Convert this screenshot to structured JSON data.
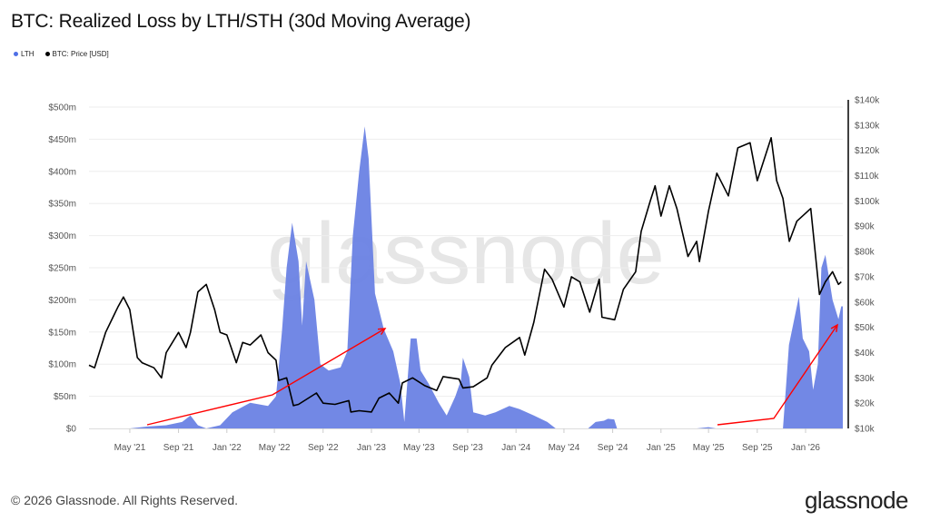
{
  "header": {
    "title": "BTC: Realized Loss by LTH/STH (30d Moving Average)"
  },
  "footer": {
    "copyright": "© 2026 Glassnode. All Rights Reserved.",
    "logo": "glassnode",
    "watermark": "glassnode"
  },
  "chart_data": {
    "type": "area+line",
    "title": "BTC: Realized Loss by LTH/STH (30d Moving Average)",
    "legend_position": "top-left",
    "grid": true,
    "x": {
      "type": "date",
      "range": [
        "2021-01-18",
        "2026-04-05"
      ],
      "tick_labels": [
        "May '21",
        "Sep '21",
        "Jan '22",
        "May '22",
        "Sep '22",
        "Jan '23",
        "May '23",
        "Sep '23",
        "Jan '24",
        "May '24",
        "Sep '24",
        "Jan '25",
        "May '25",
        "Sep '25",
        "Jan '26"
      ],
      "tick_dates": [
        "2021-05-01",
        "2021-09-01",
        "2022-01-01",
        "2022-05-01",
        "2022-09-01",
        "2023-01-01",
        "2023-05-01",
        "2023-09-01",
        "2024-01-01",
        "2024-05-01",
        "2024-09-01",
        "2025-01-01",
        "2025-05-01",
        "2025-09-01",
        "2026-01-01"
      ]
    },
    "y_left": {
      "unit": "USD millions",
      "range": [
        0,
        500
      ],
      "tick_labels": [
        "$0",
        "$50m",
        "$100m",
        "$150m",
        "$200m",
        "$250m",
        "$300m",
        "$350m",
        "$400m",
        "$450m",
        "$500m"
      ]
    },
    "y_right": {
      "unit": "USD thousands",
      "range": [
        10,
        140
      ],
      "tick_labels": [
        "$10k",
        "$20k",
        "$30k",
        "$40k",
        "$50k",
        "$60k",
        "$70k",
        "$80k",
        "$90k",
        "$100k",
        "$110k",
        "$120k",
        "$130k",
        "$140k"
      ]
    },
    "series": [
      {
        "name": "LTH",
        "type": "area",
        "axis": "left",
        "color": "#6a82e4",
        "points": [
          [
            "2021-01-18",
            0
          ],
          [
            "2021-05-01",
            0
          ],
          [
            "2021-06-15",
            3
          ],
          [
            "2021-08-01",
            5
          ],
          [
            "2021-09-10",
            10
          ],
          [
            "2021-10-01",
            20
          ],
          [
            "2021-10-20",
            5
          ],
          [
            "2021-11-10",
            0
          ],
          [
            "2021-12-15",
            5
          ],
          [
            "2022-01-15",
            25
          ],
          [
            "2022-03-01",
            40
          ],
          [
            "2022-04-15",
            35
          ],
          [
            "2022-05-05",
            50
          ],
          [
            "2022-05-20",
            150
          ],
          [
            "2022-06-01",
            250
          ],
          [
            "2022-06-15",
            320
          ],
          [
            "2022-07-01",
            260
          ],
          [
            "2022-07-10",
            160
          ],
          [
            "2022-07-20",
            260
          ],
          [
            "2022-08-10",
            200
          ],
          [
            "2022-08-25",
            100
          ],
          [
            "2022-09-15",
            90
          ],
          [
            "2022-10-15",
            95
          ],
          [
            "2022-11-01",
            120
          ],
          [
            "2022-11-15",
            300
          ],
          [
            "2022-12-01",
            400
          ],
          [
            "2022-12-15",
            470
          ],
          [
            "2022-12-25",
            420
          ],
          [
            "2023-01-10",
            210
          ],
          [
            "2023-02-01",
            155
          ],
          [
            "2023-02-25",
            120
          ],
          [
            "2023-03-15",
            70
          ],
          [
            "2023-03-25",
            10
          ],
          [
            "2023-04-10",
            140
          ],
          [
            "2023-04-25",
            140
          ],
          [
            "2023-05-05",
            90
          ],
          [
            "2023-05-25",
            70
          ],
          [
            "2023-06-20",
            40
          ],
          [
            "2023-07-10",
            20
          ],
          [
            "2023-08-01",
            50
          ],
          [
            "2023-08-15",
            75
          ],
          [
            "2023-08-20",
            110
          ],
          [
            "2023-09-05",
            80
          ],
          [
            "2023-09-15",
            25
          ],
          [
            "2023-10-15",
            20
          ],
          [
            "2023-11-10",
            25
          ],
          [
            "2023-12-15",
            35
          ],
          [
            "2024-01-10",
            30
          ],
          [
            "2024-02-15",
            20
          ],
          [
            "2024-03-20",
            10
          ],
          [
            "2024-04-10",
            0
          ],
          [
            "2024-07-01",
            0
          ],
          [
            "2024-07-20",
            10
          ],
          [
            "2024-08-10",
            12
          ],
          [
            "2024-08-20",
            15
          ],
          [
            "2024-09-05",
            14
          ],
          [
            "2024-09-12",
            0
          ],
          [
            "2025-04-01",
            0
          ],
          [
            "2025-05-01",
            2
          ],
          [
            "2025-05-20",
            0
          ],
          [
            "2025-11-05",
            0
          ],
          [
            "2025-11-12",
            60
          ],
          [
            "2025-11-20",
            130
          ],
          [
            "2025-12-15",
            205
          ],
          [
            "2025-12-25",
            140
          ],
          [
            "2026-01-10",
            120
          ],
          [
            "2026-01-20",
            60
          ],
          [
            "2026-02-01",
            100
          ],
          [
            "2026-02-10",
            250
          ],
          [
            "2026-02-20",
            270
          ],
          [
            "2026-03-10",
            200
          ],
          [
            "2026-03-25",
            170
          ],
          [
            "2026-04-01",
            190
          ],
          [
            "2026-04-05",
            190
          ]
        ]
      },
      {
        "name": "BTC: Price [USD]",
        "type": "line",
        "axis": "right",
        "color": "#000000",
        "points": [
          [
            "2021-01-18",
            35
          ],
          [
            "2021-02-01",
            34
          ],
          [
            "2021-03-01",
            48
          ],
          [
            "2021-04-01",
            58
          ],
          [
            "2021-04-15",
            62
          ],
          [
            "2021-05-01",
            57
          ],
          [
            "2021-05-20",
            38
          ],
          [
            "2021-06-01",
            36
          ],
          [
            "2021-07-01",
            34
          ],
          [
            "2021-07-20",
            30
          ],
          [
            "2021-08-01",
            40
          ],
          [
            "2021-09-01",
            48
          ],
          [
            "2021-09-20",
            42
          ],
          [
            "2021-10-01",
            48
          ],
          [
            "2021-10-20",
            64
          ],
          [
            "2021-11-10",
            67
          ],
          [
            "2021-12-01",
            57
          ],
          [
            "2021-12-15",
            48
          ],
          [
            "2022-01-01",
            47
          ],
          [
            "2022-01-25",
            36
          ],
          [
            "2022-02-10",
            44
          ],
          [
            "2022-03-01",
            43
          ],
          [
            "2022-03-28",
            47
          ],
          [
            "2022-04-15",
            40
          ],
          [
            "2022-05-05",
            37
          ],
          [
            "2022-05-12",
            29
          ],
          [
            "2022-06-01",
            30
          ],
          [
            "2022-06-18",
            19
          ],
          [
            "2022-07-01",
            19.5
          ],
          [
            "2022-08-15",
            24
          ],
          [
            "2022-09-01",
            20
          ],
          [
            "2022-10-01",
            19.5
          ],
          [
            "2022-11-05",
            21
          ],
          [
            "2022-11-10",
            16.5
          ],
          [
            "2022-12-01",
            17
          ],
          [
            "2023-01-01",
            16.5
          ],
          [
            "2023-01-20",
            22
          ],
          [
            "2023-02-15",
            24
          ],
          [
            "2023-03-10",
            20
          ],
          [
            "2023-03-20",
            28
          ],
          [
            "2023-04-15",
            30
          ],
          [
            "2023-05-15",
            27
          ],
          [
            "2023-06-15",
            25
          ],
          [
            "2023-07-01",
            30.5
          ],
          [
            "2023-08-10",
            29.5
          ],
          [
            "2023-08-20",
            26
          ],
          [
            "2023-09-15",
            26.5
          ],
          [
            "2023-10-20",
            30
          ],
          [
            "2023-11-01",
            35
          ],
          [
            "2023-12-05",
            42
          ],
          [
            "2024-01-10",
            46
          ],
          [
            "2024-01-23",
            39
          ],
          [
            "2024-02-15",
            52
          ],
          [
            "2024-03-13",
            73
          ],
          [
            "2024-04-01",
            69
          ],
          [
            "2024-05-01",
            58
          ],
          [
            "2024-05-20",
            70
          ],
          [
            "2024-06-10",
            68
          ],
          [
            "2024-07-05",
            56
          ],
          [
            "2024-07-29",
            69
          ],
          [
            "2024-08-05",
            54
          ],
          [
            "2024-09-06",
            53
          ],
          [
            "2024-09-28",
            65
          ],
          [
            "2024-10-29",
            72
          ],
          [
            "2024-11-12",
            88
          ],
          [
            "2024-12-05",
            100
          ],
          [
            "2024-12-17",
            106
          ],
          [
            "2025-01-01",
            94
          ],
          [
            "2025-01-22",
            106
          ],
          [
            "2025-02-10",
            97
          ],
          [
            "2025-03-10",
            78
          ],
          [
            "2025-04-01",
            84
          ],
          [
            "2025-04-08",
            76
          ],
          [
            "2025-05-01",
            96
          ],
          [
            "2025-05-22",
            111
          ],
          [
            "2025-06-20",
            102
          ],
          [
            "2025-07-14",
            121
          ],
          [
            "2025-08-14",
            123
          ],
          [
            "2025-09-01",
            108
          ],
          [
            "2025-10-06",
            125
          ],
          [
            "2025-10-20",
            108
          ],
          [
            "2025-11-05",
            101
          ],
          [
            "2025-11-21",
            84
          ],
          [
            "2025-12-10",
            92
          ],
          [
            "2026-01-14",
            97
          ],
          [
            "2026-02-05",
            63
          ],
          [
            "2026-02-20",
            68
          ],
          [
            "2026-03-10",
            72
          ],
          [
            "2026-03-25",
            67
          ],
          [
            "2026-04-01",
            68
          ]
        ]
      }
    ],
    "annotations": {
      "color": "#ff0000",
      "count": 2
    }
  }
}
